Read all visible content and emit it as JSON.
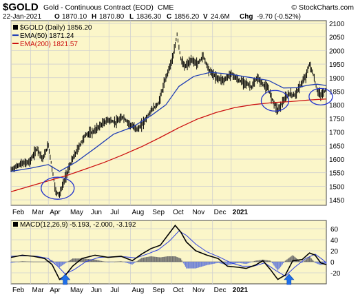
{
  "header": {
    "symbol": "$GOLD",
    "description": "Gold - Continuous Contract (EOD)",
    "exchange": "CME",
    "copyright": "© StockCharts.com",
    "date": "22-Jan-2021",
    "open_label": "O",
    "open": "1870.10",
    "high_label": "H",
    "high": "1870.80",
    "low_label": "L",
    "low": "1836.30",
    "close_label": "C",
    "close": "1856.20",
    "volume_label": "V",
    "volume": "24.6M",
    "change_label": "Chg",
    "change": "-9.70 (-0.52%)"
  },
  "legend": {
    "price": "$GOLD (Daily) 1856.20",
    "ema50": "EMA(50) 1871.24",
    "ema200": "EMA(200) 1821.57",
    "macd": "MACD(12,26,9) -5.193, -2.000, -3.192"
  },
  "colors": {
    "plot_bg": "#fbf6c9",
    "grid": "#cfcfcf",
    "price": "#000000",
    "ema50": "#1f3db5",
    "ema200": "#cc1111",
    "macd_signal": "#2c3fe0",
    "hist_pos": "#6f6f6f",
    "hist_neg": "#6b7fd6",
    "circle": "#2233cc",
    "arrow": "#1f6fe8"
  },
  "chart_data": [
    {
      "type": "line",
      "title": "$GOLD (Daily) 1856.20",
      "x_ticks": [
        "Feb",
        "Mar",
        "Apr",
        "May",
        "Jun",
        "Jul",
        "Aug",
        "Sep",
        "Oct",
        "Nov",
        "Dec",
        "2021"
      ],
      "ylim": [
        1430,
        2110
      ],
      "y_ticks": [
        1450,
        1500,
        1550,
        1600,
        1650,
        1700,
        1750,
        1800,
        1850,
        1900,
        1950,
        2000,
        2050,
        2100
      ],
      "series": [
        {
          "name": "$GOLD",
          "style": "ohlc",
          "points": [
            [
              0,
              1560
            ],
            [
              10,
              1582
            ],
            [
              20,
              1590
            ],
            [
              28,
              1640
            ],
            [
              34,
              1600
            ],
            [
              40,
              1652
            ],
            [
              48,
              1480
            ],
            [
              52,
              1470
            ],
            [
              58,
              1530
            ],
            [
              66,
              1600
            ],
            [
              72,
              1640
            ],
            [
              80,
              1690
            ],
            [
              88,
              1700
            ],
            [
              96,
              1725
            ],
            [
              104,
              1745
            ],
            [
              112,
              1735
            ],
            [
              120,
              1755
            ],
            [
              128,
              1725
            ],
            [
              136,
              1710
            ],
            [
              142,
              1735
            ],
            [
              150,
              1778
            ],
            [
              158,
              1805
            ],
            [
              166,
              1900
            ],
            [
              174,
              1980
            ],
            [
              178,
              2060
            ],
            [
              182,
              1970
            ],
            [
              186,
              1940
            ],
            [
              194,
              1965
            ],
            [
              200,
              1950
            ],
            [
              206,
              1980
            ],
            [
              212,
              1930
            ],
            [
              220,
              1900
            ],
            [
              228,
              1890
            ],
            [
              236,
              1915
            ],
            [
              244,
              1890
            ],
            [
              252,
              1880
            ],
            [
              258,
              1865
            ],
            [
              264,
              1900
            ],
            [
              270,
              1875
            ],
            [
              276,
              1858
            ],
            [
              280,
              1820
            ],
            [
              286,
              1780
            ],
            [
              292,
              1815
            ],
            [
              298,
              1840
            ],
            [
              304,
              1835
            ],
            [
              310,
              1870
            ],
            [
              316,
              1905
            ],
            [
              320,
              1950
            ],
            [
              324,
              1910
            ],
            [
              328,
              1855
            ],
            [
              332,
              1835
            ],
            [
              338,
              1856.2
            ]
          ]
        },
        {
          "name": "EMA(50)",
          "points": [
            [
              0,
              1555
            ],
            [
              20,
              1566
            ],
            [
              40,
              1580
            ],
            [
              52,
              1555
            ],
            [
              70,
              1590
            ],
            [
              90,
              1640
            ],
            [
              110,
              1692
            ],
            [
              130,
              1718
            ],
            [
              150,
              1760
            ],
            [
              166,
              1800
            ],
            [
              180,
              1868
            ],
            [
              196,
              1905
            ],
            [
              214,
              1920
            ],
            [
              236,
              1912
            ],
            [
              258,
              1900
            ],
            [
              276,
              1890
            ],
            [
              292,
              1862
            ],
            [
              306,
              1863
            ],
            [
              318,
              1872
            ],
            [
              328,
              1876
            ],
            [
              338,
              1871.24
            ]
          ]
        },
        {
          "name": "EMA(200)",
          "points": [
            [
              0,
              1480
            ],
            [
              20,
              1500
            ],
            [
              40,
              1520
            ],
            [
              60,
              1540
            ],
            [
              80,
              1564
            ],
            [
              100,
              1588
            ],
            [
              120,
              1616
            ],
            [
              140,
              1646
            ],
            [
              160,
              1680
            ],
            [
              180,
              1716
            ],
            [
              200,
              1748
            ],
            [
              220,
              1772
            ],
            [
              240,
              1790
            ],
            [
              260,
              1801
            ],
            [
              280,
              1808
            ],
            [
              300,
              1812
            ],
            [
              320,
              1818
            ],
            [
              338,
              1821.57
            ]
          ]
        }
      ],
      "annotations": [
        {
          "shape": "ellipse",
          "x": 50,
          "y": 1493
        },
        {
          "shape": "ellipse",
          "x": 283,
          "y": 1815
        },
        {
          "shape": "ellipse",
          "x": 332,
          "y": 1830
        }
      ]
    },
    {
      "type": "line",
      "title": "MACD(12,26,9) -5.193, -2.000, -3.192",
      "x_ticks": [
        "Feb",
        "Mar",
        "Apr",
        "May",
        "Jun",
        "Jul",
        "Aug",
        "Sep",
        "Oct",
        "Nov",
        "Dec",
        "2021"
      ],
      "ylim": [
        -40,
        75
      ],
      "y_ticks": [
        -20,
        0,
        20,
        40,
        60
      ],
      "series": [
        {
          "name": "MACD",
          "points": [
            [
              0,
              8
            ],
            [
              12,
              12
            ],
            [
              24,
              10
            ],
            [
              36,
              6
            ],
            [
              44,
              -5
            ],
            [
              52,
              -32
            ],
            [
              58,
              -25
            ],
            [
              66,
              -8
            ],
            [
              76,
              6
            ],
            [
              90,
              12
            ],
            [
              104,
              8
            ],
            [
              118,
              10
            ],
            [
              130,
              2
            ],
            [
              140,
              14
            ],
            [
              150,
              24
            ],
            [
              160,
              30
            ],
            [
              168,
              48
            ],
            [
              176,
              66
            ],
            [
              182,
              54
            ],
            [
              188,
              36
            ],
            [
              198,
              20
            ],
            [
              210,
              12
            ],
            [
              222,
              6
            ],
            [
              232,
              -8
            ],
            [
              244,
              -10
            ],
            [
              252,
              -12
            ],
            [
              262,
              -6
            ],
            [
              270,
              2
            ],
            [
              278,
              -14
            ],
            [
              286,
              -32
            ],
            [
              294,
              -24
            ],
            [
              302,
              2
            ],
            [
              312,
              4
            ],
            [
              320,
              16
            ],
            [
              326,
              12
            ],
            [
              332,
              -2
            ],
            [
              338,
              -5.193
            ]
          ]
        },
        {
          "name": "Signal",
          "points": [
            [
              0,
              10
            ],
            [
              14,
              11
            ],
            [
              28,
              10
            ],
            [
              40,
              6
            ],
            [
              50,
              -8
            ],
            [
              58,
              -22
            ],
            [
              68,
              -14
            ],
            [
              80,
              0
            ],
            [
              94,
              8
            ],
            [
              108,
              9
            ],
            [
              122,
              9
            ],
            [
              134,
              7
            ],
            [
              146,
              14
            ],
            [
              158,
              22
            ],
            [
              170,
              38
            ],
            [
              180,
              56
            ],
            [
              188,
              48
            ],
            [
              198,
              32
            ],
            [
              210,
              18
            ],
            [
              224,
              8
            ],
            [
              236,
              -2
            ],
            [
              248,
              -8
            ],
            [
              260,
              -8
            ],
            [
              272,
              -2
            ],
            [
              284,
              -16
            ],
            [
              294,
              -26
            ],
            [
              304,
              -10
            ],
            [
              316,
              6
            ],
            [
              326,
              14
            ],
            [
              334,
              4
            ],
            [
              338,
              -2.0
            ]
          ]
        },
        {
          "name": "Histogram",
          "style": "bars",
          "points": [
            [
              0,
              -2
            ],
            [
              12,
              1
            ],
            [
              24,
              0
            ],
            [
              36,
              0
            ],
            [
              44,
              3
            ],
            [
              52,
              -10
            ],
            [
              58,
              -3
            ],
            [
              66,
              6
            ],
            [
              76,
              6
            ],
            [
              90,
              4
            ],
            [
              104,
              -1
            ],
            [
              118,
              1
            ],
            [
              130,
              -5
            ],
            [
              140,
              7
            ],
            [
              150,
              10
            ],
            [
              160,
              8
            ],
            [
              168,
              10
            ],
            [
              176,
              10
            ],
            [
              182,
              6
            ],
            [
              188,
              -12
            ],
            [
              198,
              -12
            ],
            [
              210,
              -6
            ],
            [
              222,
              -2
            ],
            [
              232,
              -6
            ],
            [
              244,
              -2
            ],
            [
              252,
              -4
            ],
            [
              262,
              2
            ],
            [
              270,
              4
            ],
            [
              278,
              2
            ],
            [
              286,
              -16
            ],
            [
              294,
              2
            ],
            [
              302,
              12
            ],
            [
              312,
              -2
            ],
            [
              320,
              10
            ],
            [
              326,
              -2
            ],
            [
              332,
              -6
            ],
            [
              338,
              -3.192
            ]
          ]
        }
      ],
      "annotations": [
        {
          "shape": "arrow-up",
          "x": 58
        },
        {
          "shape": "arrow-up",
          "x": 298
        }
      ]
    }
  ]
}
